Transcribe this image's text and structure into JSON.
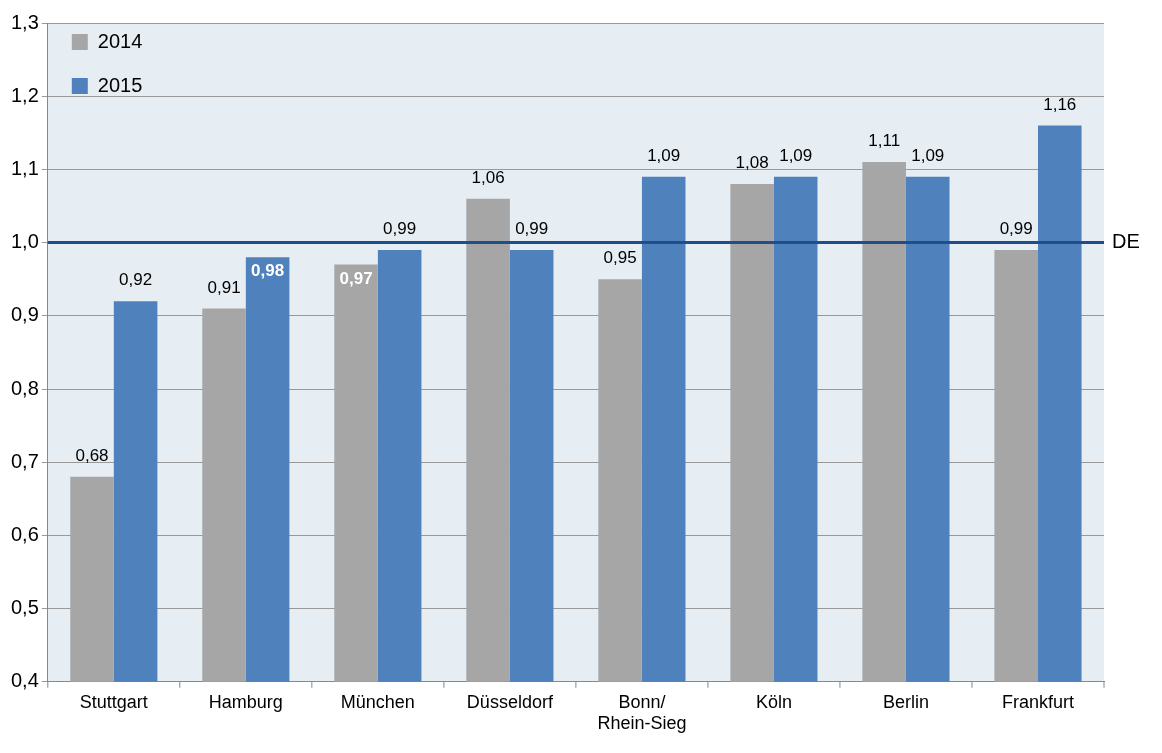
{
  "chart_data": {
    "type": "bar",
    "categories": [
      "Stuttgart",
      "Hamburg",
      "München",
      "Düsseldorf",
      "Bonn/Rhein-Sieg",
      "Köln",
      "Berlin",
      "Frankfurt"
    ],
    "series": [
      {
        "name": "2014",
        "color": "#a6a6a6",
        "values": [
          0.68,
          0.91,
          0.97,
          1.06,
          0.95,
          1.08,
          1.11,
          0.99
        ],
        "value_labels": [
          "0,68",
          "0,91",
          "0,97",
          "1,06",
          "0,95",
          "1,08",
          "1,11",
          "0,99"
        ]
      },
      {
        "name": "2015",
        "color": "#4f81bd",
        "values": [
          0.92,
          0.98,
          0.99,
          0.99,
          1.09,
          1.09,
          1.09,
          1.16
        ],
        "value_labels": [
          "0,92",
          "0,98",
          "0,99",
          "0,99",
          "1,09",
          "1,09",
          "1,09",
          "1,16"
        ]
      }
    ],
    "ylim": [
      0.4,
      1.3
    ],
    "yticks": [
      {
        "value": 0.4,
        "label": "0,4"
      },
      {
        "value": 0.5,
        "label": "0,5"
      },
      {
        "value": 0.6,
        "label": "0,6"
      },
      {
        "value": 0.7,
        "label": "0,7"
      },
      {
        "value": 0.8,
        "label": "0,8"
      },
      {
        "value": 0.9,
        "label": "0,9"
      },
      {
        "value": 1.0,
        "label": "1,0"
      },
      {
        "value": 1.1,
        "label": "1,1"
      },
      {
        "value": 1.2,
        "label": "1,2"
      },
      {
        "value": 1.3,
        "label": "1,3"
      }
    ],
    "ref_lines": [
      {
        "axis": "y",
        "value": 1.0,
        "label": "DE",
        "color": "#1f4e8c"
      }
    ],
    "grid": "y",
    "legend": "top left"
  }
}
